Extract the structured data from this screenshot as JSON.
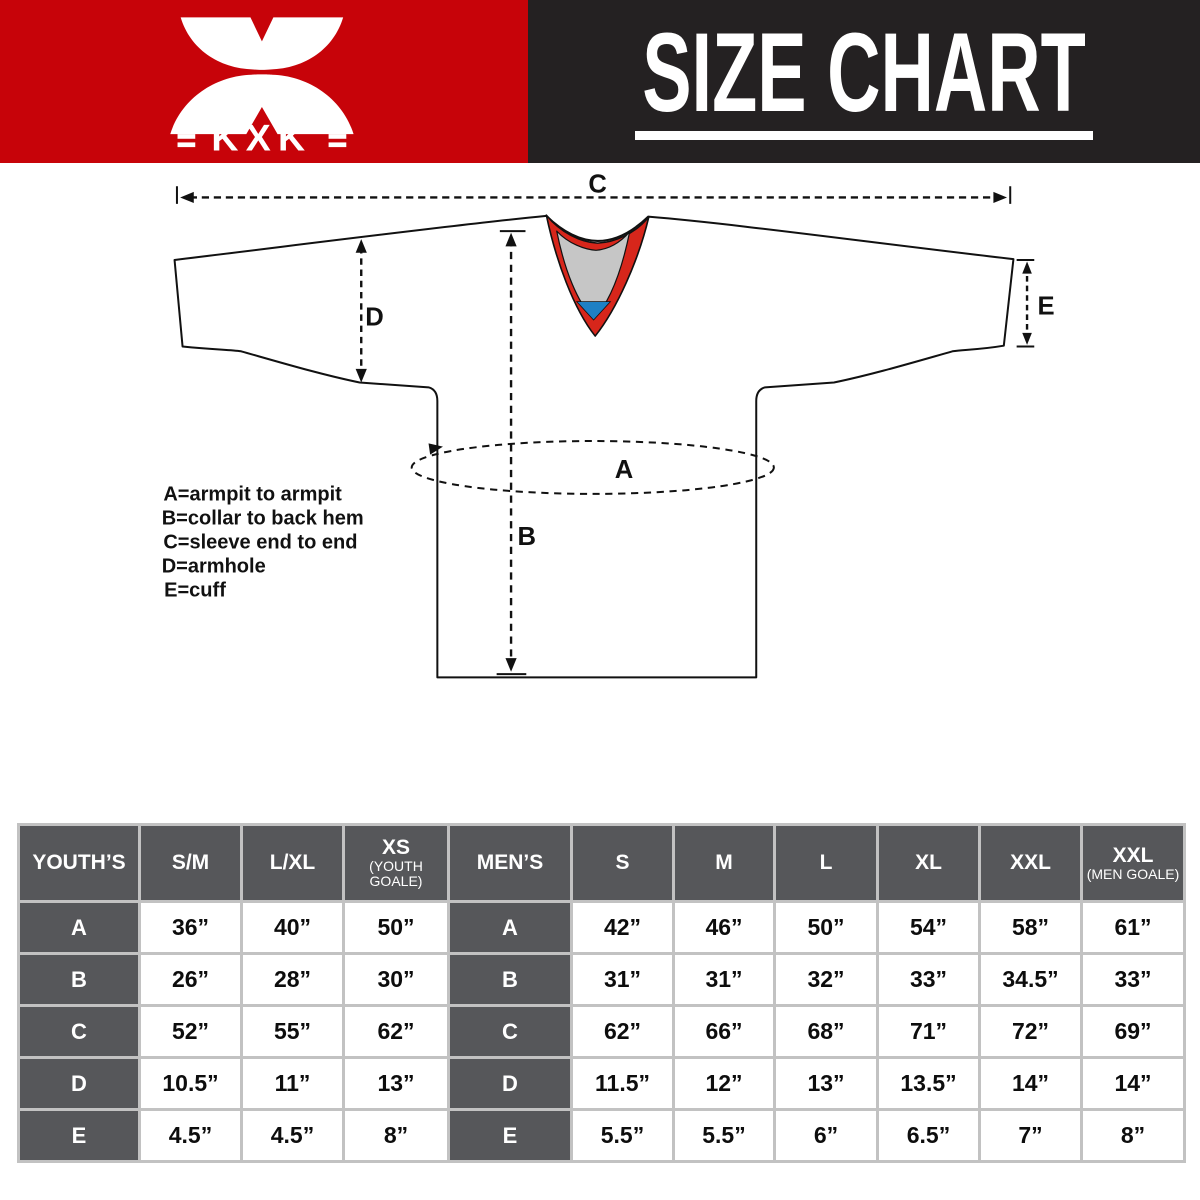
{
  "header": {
    "brand": "KXK",
    "title": "SIZE CHART"
  },
  "colors": {
    "header_red": "#c70309",
    "header_black": "#242122",
    "collar_red": "#d7261b",
    "collar_gray": "#c6c6c6",
    "collar_blue": "#1e80c4",
    "outline_black": "#111111",
    "table_dark": "#56575a",
    "table_gap": "#c2c2c2"
  },
  "diagram": {
    "measure_labels": {
      "A": "A",
      "B": "B",
      "C": "C",
      "D": "D",
      "E": "E"
    },
    "legend": [
      "A=armpit to armpit",
      "B=collar to back hem",
      "C=sleeve end to end",
      "D=armhole",
      "E=cuff"
    ]
  },
  "table": {
    "sections": [
      {
        "title": "YOUTH’S",
        "columns": [
          {
            "main": "S/M",
            "sub": ""
          },
          {
            "main": "L/XL",
            "sub": ""
          },
          {
            "main": "XS",
            "sub": "(YOUTH GOALE)"
          }
        ],
        "rows": [
          {
            "label": "A",
            "values": [
              "36”",
              "40”",
              "50”"
            ]
          },
          {
            "label": "B",
            "values": [
              "26”",
              "28”",
              "30”"
            ]
          },
          {
            "label": "C",
            "values": [
              "52”",
              "55”",
              "62”"
            ]
          },
          {
            "label": "D",
            "values": [
              "10.5”",
              "11”",
              "13”"
            ]
          },
          {
            "label": "E",
            "values": [
              "4.5”",
              "4.5”",
              "8”"
            ]
          }
        ]
      },
      {
        "title": "MEN’S",
        "columns": [
          {
            "main": "S",
            "sub": ""
          },
          {
            "main": "M",
            "sub": ""
          },
          {
            "main": "L",
            "sub": ""
          },
          {
            "main": "XL",
            "sub": ""
          },
          {
            "main": "XXL",
            "sub": ""
          },
          {
            "main": "XXL",
            "sub": "(MEN GOALE)"
          }
        ],
        "rows": [
          {
            "label": "A",
            "values": [
              "42”",
              "46”",
              "50”",
              "54”",
              "58”",
              "61”"
            ]
          },
          {
            "label": "B",
            "values": [
              "31”",
              "31”",
              "32”",
              "33”",
              "34.5”",
              "33”"
            ]
          },
          {
            "label": "C",
            "values": [
              "62”",
              "66”",
              "68”",
              "71”",
              "72”",
              "69”"
            ]
          },
          {
            "label": "D",
            "values": [
              "11.5”",
              "12”",
              "13”",
              "13.5”",
              "14”",
              "14”"
            ]
          },
          {
            "label": "E",
            "values": [
              "5.5”",
              "5.5”",
              "6”",
              "6.5”",
              "7”",
              "8”"
            ]
          }
        ]
      }
    ]
  }
}
